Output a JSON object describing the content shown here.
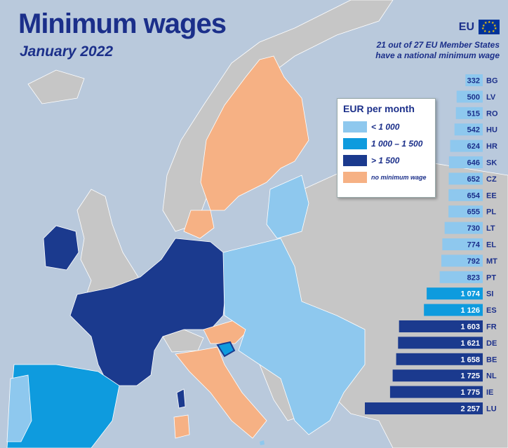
{
  "title": "Minimum wages",
  "subtitle": "January 2022",
  "eu_badge": "EU",
  "note": [
    "21 out of 27 EU Member States",
    "have a national minimum wage"
  ],
  "legend": {
    "title": "EUR per month",
    "items": [
      {
        "label": "< 1 000",
        "color": "#8ec8ee"
      },
      {
        "label": "1 000 – 1 500",
        "color": "#0e9bde"
      },
      {
        "label": "> 1 500",
        "color": "#1b3a8e"
      },
      {
        "label": "no minimum wage",
        "color": "#f6b184"
      }
    ]
  },
  "colors": {
    "sea": "#b9c9dc",
    "non_eu_land": "#c6c6c6",
    "text": "#1b2f8a"
  },
  "chart_data": {
    "type": "bar",
    "orientation": "horizontal",
    "unit": "EUR per month",
    "categories": [
      "BG",
      "LV",
      "RO",
      "HU",
      "HR",
      "SK",
      "CZ",
      "EE",
      "PL",
      "LT",
      "EL",
      "MT",
      "PT",
      "SI",
      "ES",
      "FR",
      "DE",
      "BE",
      "NL",
      "IE",
      "LU"
    ],
    "values": [
      332,
      500,
      515,
      542,
      624,
      646,
      652,
      654,
      655,
      730,
      774,
      792,
      823,
      1074,
      1126,
      1603,
      1621,
      1658,
      1725,
      1775,
      2257
    ],
    "value_labels": [
      "332",
      "500",
      "515",
      "542",
      "624",
      "646",
      "652",
      "654",
      "655",
      "730",
      "774",
      "792",
      "823",
      "1 074",
      "1 126",
      "1 603",
      "1 621",
      "1 658",
      "1 725",
      "1 775",
      "2 257"
    ]
  }
}
